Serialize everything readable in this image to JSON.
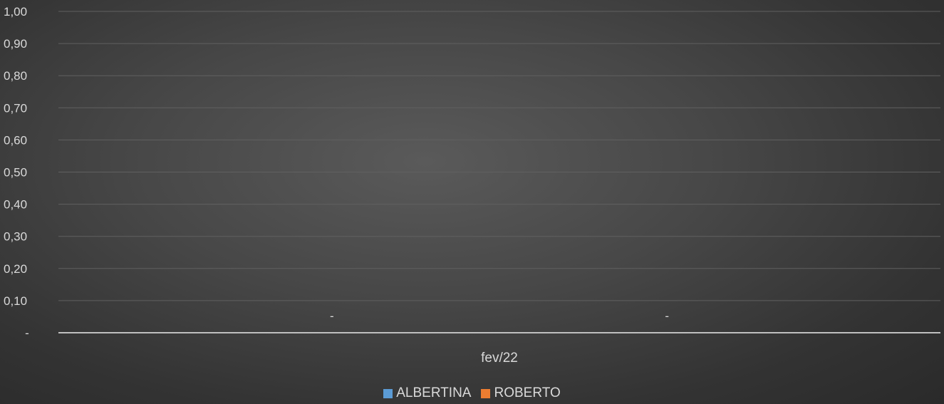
{
  "chart_data": {
    "type": "bar",
    "categories": [
      "fev/22"
    ],
    "series": [
      {
        "name": "ALBERTINA",
        "values": [
          0
        ],
        "data_label": "-",
        "color": "#5b9bd5"
      },
      {
        "name": "ROBERTO",
        "values": [
          0
        ],
        "data_label": "-",
        "color": "#ed7d31"
      }
    ],
    "ylim": [
      0,
      1
    ],
    "y_tick_labels": [
      "-",
      "0,10",
      "0,20",
      "0,30",
      "0,40",
      "0,50",
      "0,60",
      "0,70",
      "0,80",
      "0,90",
      "1,00"
    ],
    "grid": true,
    "legend_position": "bottom",
    "colors": {
      "axis_line": "#bfbfbf",
      "gridline": "#606060",
      "text": "#d9d9d9"
    }
  }
}
